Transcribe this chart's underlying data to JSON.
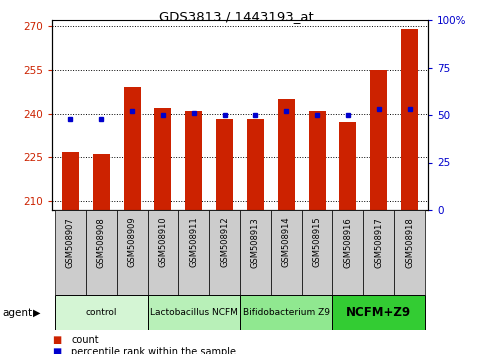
{
  "title": "GDS3813 / 1443193_at",
  "samples": [
    "GSM508907",
    "GSM508908",
    "GSM508909",
    "GSM508910",
    "GSM508911",
    "GSM508912",
    "GSM508913",
    "GSM508914",
    "GSM508915",
    "GSM508916",
    "GSM508917",
    "GSM508918"
  ],
  "bar_values": [
    227,
    226,
    249,
    242,
    241,
    238,
    238,
    245,
    241,
    237,
    255,
    269
  ],
  "dot_values": [
    48,
    48,
    52,
    50,
    51,
    50,
    50,
    52,
    50,
    50,
    53,
    53
  ],
  "ylim_left": [
    207,
    272
  ],
  "ylim_right": [
    0,
    100
  ],
  "yticks_left": [
    210,
    225,
    240,
    255,
    270
  ],
  "yticks_right": [
    0,
    25,
    50,
    75,
    100
  ],
  "bar_color": "#cc2200",
  "dot_color": "#0000cc",
  "groups": [
    {
      "label": "control",
      "indices": [
        0,
        1,
        2
      ],
      "color": "#d4f5d4"
    },
    {
      "label": "Lactobacillus NCFM",
      "indices": [
        3,
        4,
        5
      ],
      "color": "#b8f0b8"
    },
    {
      "label": "Bifidobacterium Z9",
      "indices": [
        6,
        7,
        8
      ],
      "color": "#90e890"
    },
    {
      "label": "NCFM+Z9",
      "indices": [
        9,
        10,
        11
      ],
      "color": "#33cc33"
    }
  ],
  "tick_label_bg": "#cccccc",
  "fig_width": 4.83,
  "fig_height": 3.54,
  "dpi": 100
}
